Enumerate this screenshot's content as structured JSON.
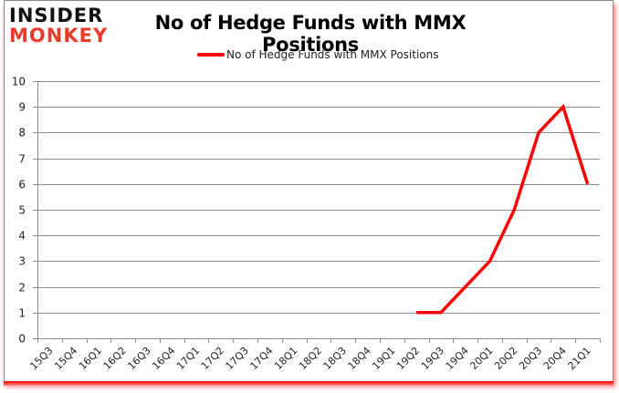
{
  "logo": {
    "line1": "INSIDER",
    "line2": "MONKEY"
  },
  "chart_data": {
    "type": "line",
    "title": "No of Hedge Funds with MMX Positions",
    "xlabel": "",
    "ylabel": "",
    "ylim": [
      0,
      10
    ],
    "yticks": [
      0,
      1,
      2,
      3,
      4,
      5,
      6,
      7,
      8,
      9,
      10
    ],
    "grid": true,
    "legend_position": "top",
    "categories": [
      "15Q3",
      "15Q4",
      "16Q1",
      "16Q2",
      "16Q3",
      "16Q4",
      "17Q1",
      "17Q2",
      "17Q3",
      "17Q4",
      "18Q1",
      "18Q2",
      "18Q3",
      "18Q4",
      "19Q1",
      "19Q2",
      "19Q3",
      "19Q4",
      "20Q1",
      "20Q2",
      "20Q3",
      "20Q4",
      "21Q1"
    ],
    "series": [
      {
        "name": "No of Hedge Funds with MMX Positions",
        "color": "#ff0000",
        "values": [
          null,
          null,
          null,
          null,
          null,
          null,
          null,
          null,
          null,
          null,
          null,
          null,
          null,
          null,
          null,
          1,
          1,
          2,
          3,
          5,
          8,
          9,
          6
        ]
      }
    ]
  }
}
